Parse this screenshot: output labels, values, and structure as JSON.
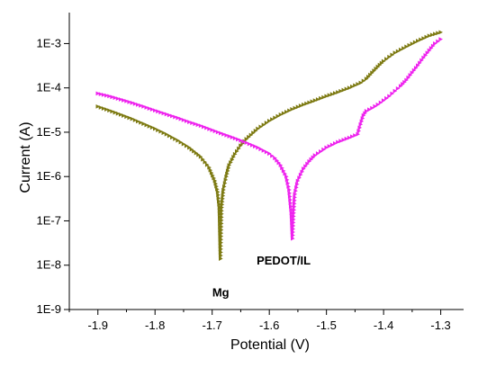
{
  "chart_data": {
    "type": "scatter",
    "title": "",
    "xlabel": "Potential (V)",
    "ylabel": "Current (A)",
    "xlim": [
      -1.95,
      -1.26
    ],
    "ylim": [
      1e-09,
      0.005
    ],
    "y_scale": "log",
    "grid": false,
    "x_ticks": [
      -1.9,
      -1.8,
      -1.7,
      -1.6,
      -1.5,
      -1.4,
      -1.3
    ],
    "x_tick_labels": [
      "-1.9",
      "-1.8",
      "-1.7",
      "-1.6",
      "-1.5",
      "-1.4",
      "-1.3"
    ],
    "y_ticks": [
      1e-09,
      1e-08,
      1e-07,
      1e-06,
      1e-05,
      0.0001,
      0.001
    ],
    "y_tick_labels": [
      "1E-9",
      "1E-8",
      "1E-7",
      "1E-6",
      "1E-5",
      "1E-4",
      "1E-3"
    ],
    "annotations": [
      {
        "text": "Mg",
        "x": -1.685,
        "y": 2.5e-09
      },
      {
        "text": "PEDOT/IL",
        "x": -1.575,
        "y": 1.3e-08
      }
    ],
    "series": [
      {
        "color": "#7d7a12",
        "marker": "triangle-right",
        "points": [
          [
            -1.9,
            3.8e-05
          ],
          [
            -1.88,
            3.1e-05
          ],
          [
            -1.86,
            2.5e-05
          ],
          [
            -1.84,
            2e-05
          ],
          [
            -1.82,
            1.55e-05
          ],
          [
            -1.8,
            1.2e-05
          ],
          [
            -1.78,
            9e-06
          ],
          [
            -1.76,
            6.5e-06
          ],
          [
            -1.74,
            4.5e-06
          ],
          [
            -1.72,
            2.8e-06
          ],
          [
            -1.705,
            1.6e-06
          ],
          [
            -1.695,
            8e-07
          ],
          [
            -1.69,
            4.5e-07
          ],
          [
            -1.687,
            2e-07
          ],
          [
            -1.685,
            1.4e-08
          ],
          [
            -1.683,
            2e-07
          ],
          [
            -1.68,
            5e-07
          ],
          [
            -1.675,
            1e-06
          ],
          [
            -1.67,
            1.8e-06
          ],
          [
            -1.66,
            3.2e-06
          ],
          [
            -1.65,
            5e-06
          ],
          [
            -1.64,
            7e-06
          ],
          [
            -1.62,
            1.2e-05
          ],
          [
            -1.6,
            1.8e-05
          ],
          [
            -1.58,
            2.5e-05
          ],
          [
            -1.56,
            3.3e-05
          ],
          [
            -1.54,
            4.2e-05
          ],
          [
            -1.52,
            5.2e-05
          ],
          [
            -1.5,
            6.5e-05
          ],
          [
            -1.48,
            8e-05
          ],
          [
            -1.46,
            0.0001
          ],
          [
            -1.44,
            0.00013
          ],
          [
            -1.43,
            0.00016
          ],
          [
            -1.42,
            0.00022
          ],
          [
            -1.41,
            0.0003
          ],
          [
            -1.4,
            0.0004
          ],
          [
            -1.39,
            0.0005
          ],
          [
            -1.38,
            0.00062
          ],
          [
            -1.36,
            0.00085
          ],
          [
            -1.34,
            0.00115
          ],
          [
            -1.32,
            0.0015
          ],
          [
            -1.3,
            0.0018
          ]
        ]
      },
      {
        "color": "#ee22ee",
        "marker": "triangle-right",
        "points": [
          [
            -1.9,
            7.5e-05
          ],
          [
            -1.88,
            6.5e-05
          ],
          [
            -1.86,
            5.5e-05
          ],
          [
            -1.84,
            4.6e-05
          ],
          [
            -1.82,
            3.8e-05
          ],
          [
            -1.8,
            3.1e-05
          ],
          [
            -1.78,
            2.55e-05
          ],
          [
            -1.76,
            2.1e-05
          ],
          [
            -1.74,
            1.7e-05
          ],
          [
            -1.72,
            1.4e-05
          ],
          [
            -1.7,
            1.12e-05
          ],
          [
            -1.68,
            9e-06
          ],
          [
            -1.66,
            7.3e-06
          ],
          [
            -1.64,
            5.8e-06
          ],
          [
            -1.62,
            4.5e-06
          ],
          [
            -1.6,
            3.3e-06
          ],
          [
            -1.59,
            2.6e-06
          ],
          [
            -1.58,
            1.8e-06
          ],
          [
            -1.57,
            1e-06
          ],
          [
            -1.565,
            5e-07
          ],
          [
            -1.561,
            1.5e-07
          ],
          [
            -1.559,
            4e-08
          ],
          [
            -1.557,
            1.5e-07
          ],
          [
            -1.555,
            4e-07
          ],
          [
            -1.55,
            8e-07
          ],
          [
            -1.54,
            1.5e-06
          ],
          [
            -1.53,
            2.2e-06
          ],
          [
            -1.52,
            3e-06
          ],
          [
            -1.5,
            4.5e-06
          ],
          [
            -1.48,
            6e-06
          ],
          [
            -1.46,
            7.5e-06
          ],
          [
            -1.445,
            9e-06
          ],
          [
            -1.44,
            1.5e-05
          ],
          [
            -1.435,
            2.4e-05
          ],
          [
            -1.43,
            3e-05
          ],
          [
            -1.42,
            3.5e-05
          ],
          [
            -1.41,
            4.2e-05
          ],
          [
            -1.4,
            5.2e-05
          ],
          [
            -1.39,
            6.5e-05
          ],
          [
            -1.38,
            8.5e-05
          ],
          [
            -1.37,
            0.00011
          ],
          [
            -1.36,
            0.00015
          ],
          [
            -1.35,
            0.00022
          ],
          [
            -1.34,
            0.00032
          ],
          [
            -1.33,
            0.00048
          ],
          [
            -1.32,
            0.0007
          ],
          [
            -1.31,
            0.001
          ],
          [
            -1.3,
            0.00125
          ]
        ]
      }
    ]
  }
}
